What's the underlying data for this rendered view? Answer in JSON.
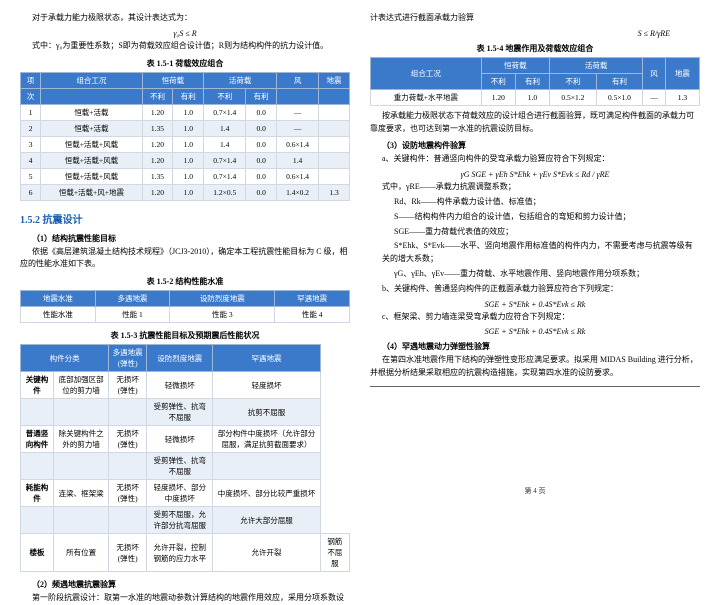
{
  "left": {
    "p1": "对于承载力能力极限状态，其设计表达式为：",
    "f1": "γ₀S ≤ R",
    "p2": "式中：γ₀为重要性系数；S即为荷载效应组合设计值；R则为结构构件的抗力设计值。",
    "cap1": "表 1.5-1 荷载效应组合",
    "t1": {
      "head1": [
        "项",
        "组合工况",
        "恒荷载",
        "",
        "活荷载",
        "",
        "风",
        "地震"
      ],
      "head2": [
        "次",
        "",
        "不利",
        "有利",
        "不利",
        "有利",
        "",
        ""
      ],
      "rows": [
        [
          "1",
          "恒载+活载",
          "1.20",
          "1.0",
          "0.7×1.4",
          "0.0",
          "—",
          ""
        ],
        [
          "2",
          "恒载+活载",
          "1.35",
          "1.0",
          "1.4",
          "0.0",
          "—",
          ""
        ],
        [
          "3",
          "恒载+活载+风载",
          "1.20",
          "1.0",
          "1.4",
          "0.0",
          "0.6×1.4",
          ""
        ],
        [
          "4",
          "恒载+活载+风载",
          "1.20",
          "1.0",
          "0.7×1.4",
          "0.0",
          "1.4",
          ""
        ],
        [
          "5",
          "恒载+活载+风载",
          "1.35",
          "1.0",
          "0.7×1.4",
          "0.0",
          "0.6×1.4",
          ""
        ],
        [
          "6",
          "恒载+活载+风+地震",
          "1.20",
          "1.0",
          "1.2×0.5",
          "0.0",
          "1.4×0.2",
          "1.3"
        ]
      ]
    },
    "sec152": "1.5.2 抗震设计",
    "sub1": "（1）结构抗震性能目标",
    "p3": "依据《高层建筑混凝土结构技术规程》（JCJ3-2010），确定本工程抗震性能目标为 C 级，相应的性能水准如下表。",
    "cap2": "表 1.5-2 结构性能水准",
    "t2": {
      "head": [
        "地震水准",
        "多遇地震",
        "设防烈度地震",
        "罕遇地震"
      ],
      "row": [
        "性能水准",
        "性能 1",
        "性能 3",
        "性能 4"
      ]
    },
    "cap3": "表 1.5-3 抗震性能目标及预期震后性能状况",
    "t3": {
      "head": [
        "构件分类",
        "多遇地震\n(弹性)",
        "设防烈度地震",
        "罕遇地震"
      ],
      "rows": [
        [
          "关键构件",
          "底部加强区部位的剪力墙",
          "无损坏\n(弹性)",
          "轻微损坏",
          "轻度损坏"
        ],
        [
          "",
          "",
          "",
          "受剪弹性、抗弯不屈服",
          "抗剪不屈服"
        ],
        [
          "普通竖向构件",
          "除关键构件之外的剪力墙",
          "无损坏\n(弹性)",
          "轻微损坏",
          "部分构件中度损坏（允许部分屈服，满足抗剪截面要求）"
        ],
        [
          "",
          "",
          "",
          "受剪弹性、抗弯不屈服",
          ""
        ],
        [
          "耗能构件",
          "连梁、框架梁",
          "无损坏\n(弹性)",
          "轻度损坏、部分中度损坏",
          "中度损坏、部分比较严重损坏"
        ],
        [
          "",
          "",
          "",
          "受剪不屈服，允许部分抗弯屈服",
          "允许大部分屈服"
        ],
        [
          "楼板",
          "所有位置",
          "无损坏\n(弹性)",
          "允许开裂，控制钢筋的应力水平",
          "允许开裂",
          "钢筋不屈服"
        ]
      ]
    },
    "sub2": "（2）频遇地震抗震验算",
    "p4": "第一阶段抗震设计：取第一水准的地震动参数计算结构的地震作用效应，采用分项系数设"
  },
  "right": {
    "p1": "计表达式进行截面承载力验算",
    "f1": "S ≤ R/γRE",
    "cap1": "表 1.5-4 地震作用及荷载效应组合",
    "t1": {
      "head1": [
        "组合工况",
        "恒荷载",
        "",
        "活荷载",
        "",
        "风",
        "地震"
      ],
      "head2": [
        "",
        "不利",
        "有利",
        "不利",
        "有利",
        "",
        ""
      ],
      "row": [
        "重力荷载+水平地震",
        "1.20",
        "1.0",
        "0.5×1.2",
        "0.5×1.0",
        "—",
        "1.3"
      ]
    },
    "p2": "按承载能力极限状态下荷载效应的设计组合进行截面验算，既可满足构件截面的承载力可靠度要求，也可达到第一水准的抗震设防目标。",
    "sub1": "（3）设防地震构件验算",
    "p3": "a、关键构件：普通竖向构件的受弯承载力验算应符合下列规定：",
    "f2": "γG SGE + γEh S*Ehk + γEv S*Evk ≤ Rd / γRE",
    "p4": "式中，γRE——承载力抗震调整系数；",
    "p5": "Rd、Rk——构件承载力设计值、标准值；",
    "p6": "S——结构构件内力组合的设计值，包括组合的弯矩和剪力设计值；",
    "p7": "SGE——重力荷载代表值的效应；",
    "p8": "S*Ehk、S*Evk——水平、竖向地震作用标准值的构件内力，不需要考虑与抗震等级有关的增大系数；",
    "p9": "γG、γEh、γEv——重力荷载、水平地震作用、竖向地震作用分项系数；",
    "p10": "b、关键构件、普通竖向构件的正截面承载力验算应符合下列规定：",
    "f3": "SGE + S*Ehk + 0.4S*Evk ≤ Rk",
    "p11": "c、框架梁、剪力墙连梁受弯承载力应符合下列规定：",
    "f4": "SGE + S*Ehk + 0.4S*Evk ≤ Rk",
    "sub2": "（4）罕遇地震动力弹塑性验算",
    "p12": "在第四水准地震作用下结构的弹塑性变形应满足要求。拟采用 MIDAS Building 进行分析，并根据分析结果采取相应的抗震构造措施，实现第四水准的设防要求。",
    "footer": "第 4 页"
  }
}
